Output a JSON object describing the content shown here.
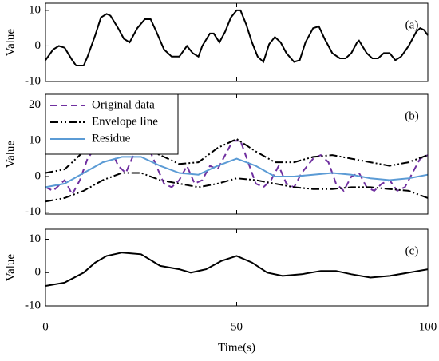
{
  "chart_data": [
    {
      "type": "line",
      "ylabel": "Value",
      "panel_label": "(a)",
      "xlim": [
        0,
        100
      ],
      "xticks": [
        0,
        50,
        100
      ],
      "ylim": [
        -10,
        12
      ],
      "yticks": [
        -10,
        0,
        10
      ],
      "series": [
        {
          "color": "#000000",
          "linestyle": "solid",
          "x": [
            0,
            2,
            3.5,
            5,
            7,
            8,
            10,
            11,
            13,
            14.5,
            16,
            17,
            19,
            20.5,
            22,
            24,
            26,
            27.5,
            29,
            31,
            33,
            35,
            37,
            38.5,
            40,
            41,
            43,
            44,
            45.5,
            47,
            48.5,
            50,
            51,
            52.5,
            54,
            55.5,
            57,
            58.5,
            60,
            61.5,
            63,
            65,
            66.5,
            68,
            70,
            71.5,
            73,
            75,
            77,
            78.5,
            80,
            81.5,
            82,
            84,
            85.5,
            87,
            88.5,
            90,
            91.5,
            93,
            95,
            97,
            98,
            99,
            100
          ],
          "values": [
            -4,
            -1,
            0,
            -0.5,
            -4,
            -5.5,
            -5.5,
            -3,
            3,
            8,
            9,
            8.5,
            5,
            2,
            1,
            5,
            7.5,
            7.5,
            4,
            -1,
            -3,
            -3,
            0,
            -2,
            -3,
            0,
            3.5,
            3.5,
            1,
            4,
            8,
            10,
            10,
            6,
            1,
            -3,
            -4.5,
            0.5,
            2.5,
            1,
            -2,
            -4.5,
            -4,
            1,
            5,
            5.5,
            2,
            -2,
            -3.5,
            -3.5,
            -2,
            1,
            1.5,
            -2,
            -3.5,
            -3.5,
            -2,
            -2,
            -4,
            -3,
            0,
            4,
            5,
            4.5,
            3
          ]
        }
      ]
    },
    {
      "type": "line",
      "ylabel": "Value",
      "panel_label": "(b)",
      "legend": "upper left",
      "xlim": [
        0,
        100
      ],
      "xticks": [
        0,
        50,
        100
      ],
      "ylim": [
        -10.5,
        23
      ],
      "yticks": [
        -10,
        0,
        10,
        20
      ],
      "series": [
        {
          "name": "Original data",
          "color": "#7030a0",
          "linestyle": "dashed",
          "x": [
            0,
            2,
            5,
            7,
            9,
            11,
            13,
            15,
            17,
            19,
            21,
            23,
            25,
            27,
            29,
            31,
            33,
            35,
            37,
            39,
            41,
            43,
            45,
            47,
            49,
            51,
            53,
            55,
            57,
            59,
            61,
            63,
            65,
            67,
            70,
            72,
            74,
            76,
            78,
            80,
            82,
            84,
            86,
            88,
            90,
            92,
            94,
            96,
            98,
            100
          ],
          "values": [
            -3,
            -4,
            -1,
            -5,
            -1,
            5,
            8,
            10,
            8,
            3,
            1,
            6,
            9,
            8,
            3,
            -2,
            -3,
            -1,
            3,
            -2,
            -1,
            3,
            2,
            6,
            10,
            10,
            4,
            -2,
            -3,
            -1,
            3,
            -2,
            -3,
            1,
            5,
            6,
            4,
            -2,
            -4,
            0,
            1,
            -3,
            -4,
            -2,
            -1,
            -4,
            -3,
            1,
            5,
            6
          ]
        },
        {
          "name": "Envelope line",
          "color": "#000000",
          "linestyle": "dashdotdot",
          "x": [
            0,
            5,
            10,
            15,
            20,
            25,
            30,
            35,
            40,
            45,
            50,
            55,
            60,
            65,
            70,
            75,
            80,
            85,
            90,
            95,
            100
          ],
          "values": [
            1,
            2,
            7,
            10,
            9,
            8,
            6,
            3.5,
            4,
            8,
            10.5,
            7,
            4,
            4,
            5.5,
            6,
            5,
            4,
            3,
            4,
            6
          ],
          "lower_values": [
            -7,
            -6,
            -4,
            -1,
            1,
            1,
            -1,
            -2,
            -3,
            -2,
            -0.5,
            -1,
            -2,
            -3,
            -3.5,
            -3.5,
            -3,
            -3,
            -3.5,
            -4,
            -6
          ]
        },
        {
          "name": "Residue",
          "color": "#5b9bd5",
          "linestyle": "solid",
          "x": [
            0,
            5,
            10,
            15,
            20,
            25,
            30,
            35,
            40,
            45,
            50,
            55,
            60,
            65,
            70,
            75,
            80,
            85,
            90,
            95,
            100
          ],
          "values": [
            -3,
            -2,
            1,
            4,
            5.5,
            5.5,
            3,
            1,
            0.5,
            3,
            5,
            3,
            0,
            0,
            0.5,
            1,
            0.5,
            -0.5,
            -1,
            -0.5,
            0.5
          ]
        }
      ]
    },
    {
      "type": "line",
      "ylabel": "Value",
      "xlabel": "Time(s)",
      "panel_label": "(c)",
      "xlim": [
        0,
        100
      ],
      "xticks": [
        0,
        50,
        100
      ],
      "ylim": [
        -10,
        13
      ],
      "yticks": [
        -10,
        0,
        10
      ],
      "series": [
        {
          "color": "#000000",
          "linestyle": "solid",
          "x": [
            0,
            5,
            10,
            13,
            16,
            20,
            25,
            30,
            35,
            38,
            42,
            46,
            50,
            54,
            58,
            62,
            67,
            72,
            76,
            80,
            85,
            90,
            95,
            100
          ],
          "values": [
            -4,
            -3,
            0,
            3,
            5,
            6,
            5.5,
            2,
            1,
            0,
            1,
            3.5,
            5,
            3,
            0,
            -1,
            -0.5,
            0.5,
            0.5,
            -0.5,
            -1.5,
            -1,
            0,
            1
          ]
        }
      ]
    }
  ]
}
